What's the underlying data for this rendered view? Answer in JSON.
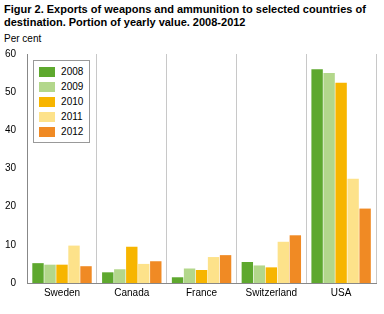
{
  "chart_data": {
    "type": "bar",
    "title": "Figur 2. Exports of weapons and ammunition to selected countries of destination. Portion of yearly value. 2008-2012",
    "y_label": "Per cent",
    "categories": [
      "Sweden",
      "Canada",
      "France",
      "Switzerland",
      "USA"
    ],
    "series": [
      {
        "name": "2008",
        "color": "#5ea82e",
        "values": [
          5.2,
          2.8,
          1.5,
          5.5,
          56
        ]
      },
      {
        "name": "2009",
        "color": "#b3d78b",
        "values": [
          4.8,
          3.6,
          3.8,
          4.6,
          55
        ]
      },
      {
        "name": "2010",
        "color": "#f7b500",
        "values": [
          4.8,
          9.5,
          3.4,
          4.1,
          52.5
        ]
      },
      {
        "name": "2011",
        "color": "#fde28a",
        "values": [
          9.8,
          5.0,
          6.8,
          10.8,
          27.3
        ]
      },
      {
        "name": "2012",
        "color": "#f08a24",
        "values": [
          4.4,
          5.7,
          7.3,
          12.5,
          19.5
        ]
      }
    ],
    "ylim": [
      0,
      60
    ],
    "yticks": [
      0,
      10,
      20,
      30,
      40,
      50,
      60
    ],
    "grid": true,
    "legend": "top-left"
  }
}
